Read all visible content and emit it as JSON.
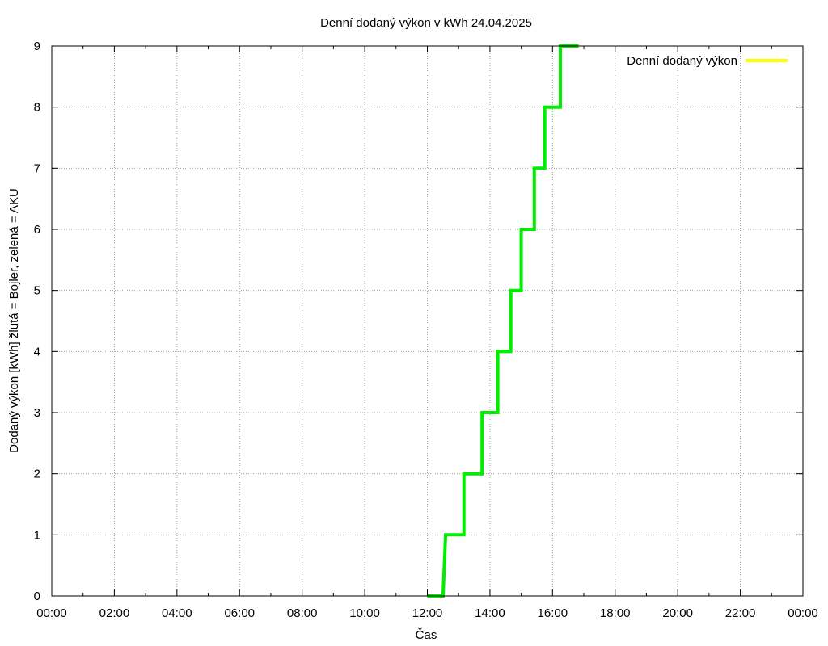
{
  "chart_data": {
    "type": "line",
    "title": "Denní dodaný výkon v kWh 24.04.2025",
    "xlabel": "Čas",
    "ylabel": "Dodaný výkon [kWh]  žlutá = Bojler, zelená = AKU",
    "xlim": [
      "00:00",
      "24:00"
    ],
    "ylim": [
      0,
      9
    ],
    "x_ticks": [
      "00:00",
      "02:00",
      "04:00",
      "06:00",
      "08:00",
      "10:00",
      "12:00",
      "14:00",
      "16:00",
      "18:00",
      "20:00",
      "22:00",
      "00:00"
    ],
    "y_ticks": [
      "0",
      "1",
      "2",
      "3",
      "4",
      "5",
      "6",
      "7",
      "8",
      "9"
    ],
    "grid": true,
    "legend_position": "top-right",
    "series": [
      {
        "name": "Denní dodaný výkon",
        "color": "#ffff00",
        "points": []
      },
      {
        "color": "#00ee00",
        "points": [
          [
            "12:00",
            0
          ],
          [
            "12:30",
            0
          ],
          [
            "12:35",
            1
          ],
          [
            "13:10",
            1
          ],
          [
            "13:10",
            2
          ],
          [
            "13:45",
            2
          ],
          [
            "13:45",
            3
          ],
          [
            "14:15",
            3
          ],
          [
            "14:15",
            4
          ],
          [
            "14:40",
            4
          ],
          [
            "14:40",
            5
          ],
          [
            "15:00",
            5
          ],
          [
            "15:00",
            6
          ],
          [
            "15:25",
            6
          ],
          [
            "15:25",
            7
          ],
          [
            "15:45",
            7
          ],
          [
            "15:45",
            8
          ],
          [
            "16:15",
            8
          ],
          [
            "16:15",
            9
          ],
          [
            "16:50",
            9
          ]
        ]
      }
    ]
  }
}
